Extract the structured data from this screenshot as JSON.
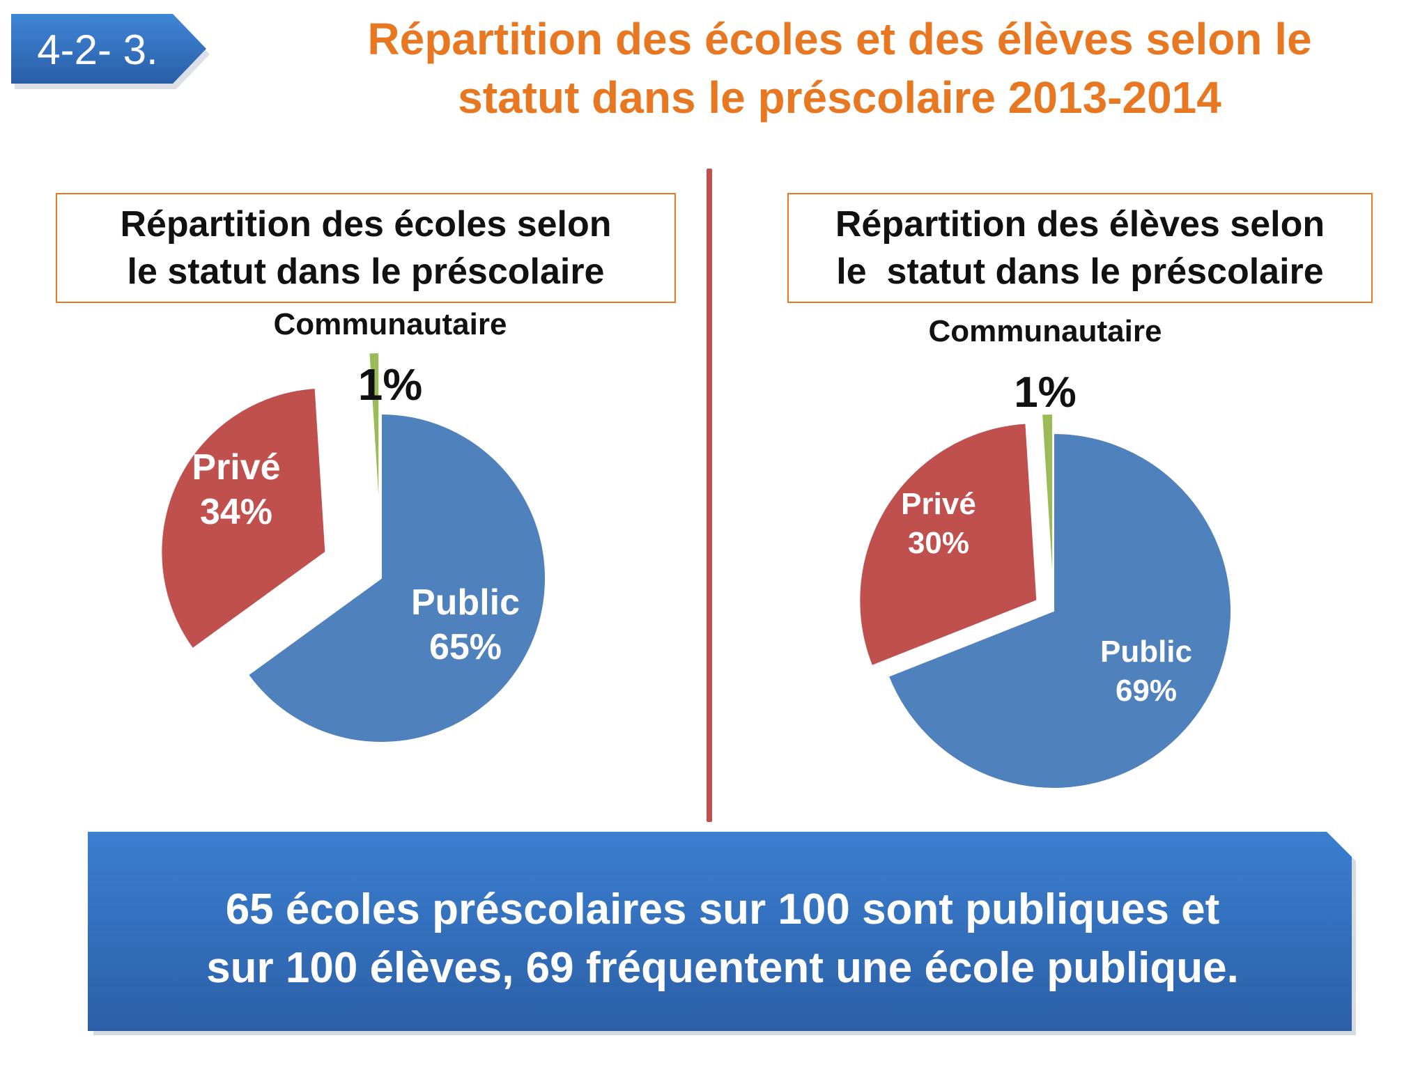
{
  "section_number": "4-2- 3.",
  "title_line1": "Répartition des écoles et des élèves selon le",
  "title_line2": "statut dans le préscolaire 2013-2014",
  "colors": {
    "public": "#4F81BD",
    "prive": "#C0504D",
    "communautaire": "#9BBB59",
    "title": "#E87722",
    "divider": "#C0504D",
    "banner": "#2F6CB8"
  },
  "chart_data": [
    {
      "type": "pie",
      "title_line1": "Répartition des écoles selon",
      "title_line2": "le statut dans le préscolaire",
      "slices": [
        {
          "name": "Public",
          "value": 65,
          "label": "65%"
        },
        {
          "name": "Privé",
          "value": 34,
          "label": "34%"
        },
        {
          "name": "Communautaire",
          "value": 1,
          "label": "1%"
        }
      ]
    },
    {
      "type": "pie",
      "title_line1": "Répartition des élèves selon",
      "title_line2": "le  statut dans le préscolaire",
      "slices": [
        {
          "name": "Public",
          "value": 69,
          "label": "69%"
        },
        {
          "name": "Privé",
          "value": 30,
          "label": "30%"
        },
        {
          "name": "Communautaire",
          "value": 1,
          "label": "1%"
        }
      ]
    }
  ],
  "summary_line1": "65 écoles préscolaires  sur 100 sont publiques et",
  "summary_line2": "sur 100 élèves, 69 fréquentent une école publique."
}
